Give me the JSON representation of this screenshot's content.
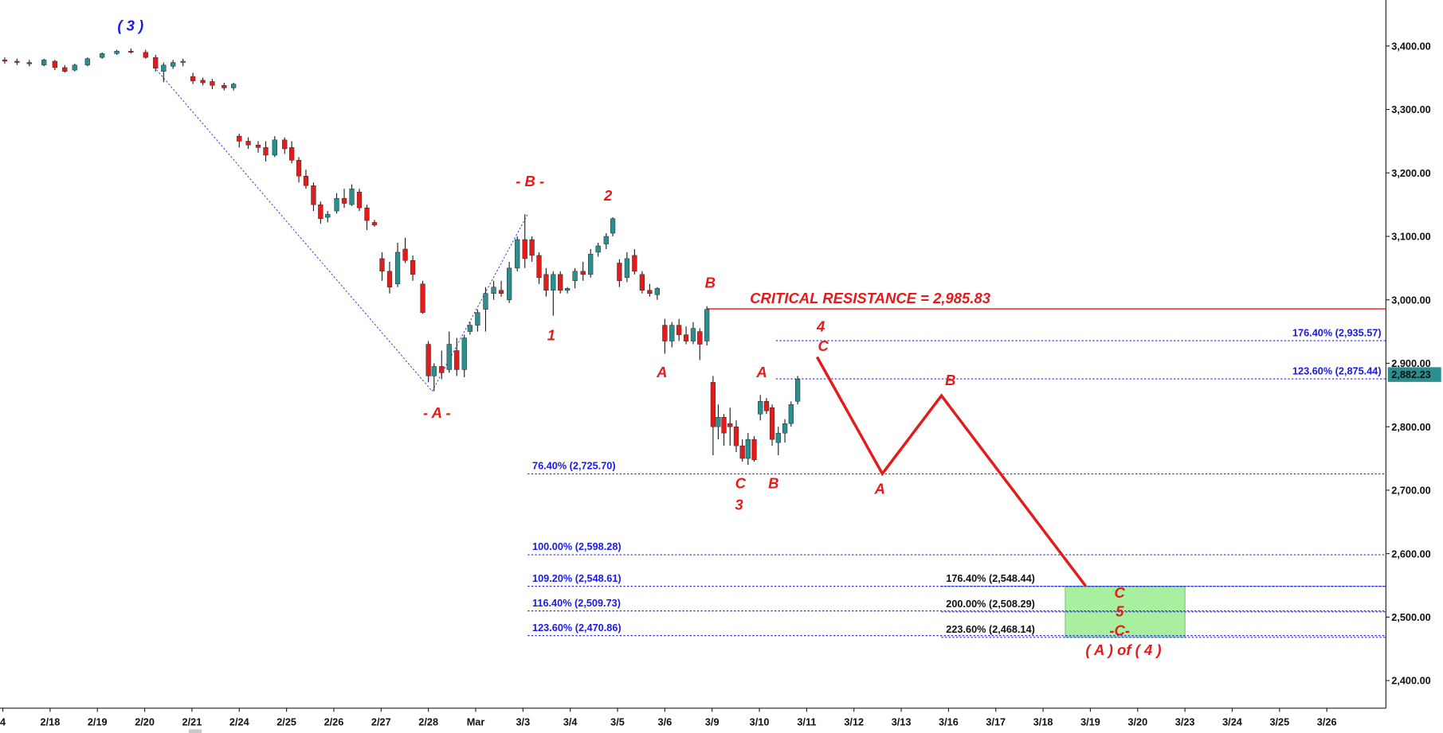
{
  "chart_data": {
    "type": "candlestick",
    "up_color": "#2a8f8f",
    "down_color": "#e41b1b",
    "xlim": [
      -0.06,
      29.25
    ],
    "ylim": [
      2356.5,
      3472.5
    ],
    "xticks": [
      {
        "value": 0,
        "label": "4"
      },
      {
        "value": 1,
        "label": "2/18"
      },
      {
        "value": 2,
        "label": "2/19"
      },
      {
        "value": 3,
        "label": "2/20"
      },
      {
        "value": 4,
        "label": "2/21"
      },
      {
        "value": 5,
        "label": "2/24"
      },
      {
        "value": 6,
        "label": "2/25"
      },
      {
        "value": 7,
        "label": "2/26"
      },
      {
        "value": 8,
        "label": "2/27"
      },
      {
        "value": 9,
        "label": "2/28"
      },
      {
        "value": 10,
        "label": "Mar"
      },
      {
        "value": 11,
        "label": "3/3"
      },
      {
        "value": 12,
        "label": "3/4"
      },
      {
        "value": 13,
        "label": "3/5"
      },
      {
        "value": 14,
        "label": "3/6"
      },
      {
        "value": 15,
        "label": "3/9"
      },
      {
        "value": 16,
        "label": "3/10"
      },
      {
        "value": 17,
        "label": "3/11"
      },
      {
        "value": 18,
        "label": "3/12"
      },
      {
        "value": 19,
        "label": "3/13"
      },
      {
        "value": 20,
        "label": "3/16"
      },
      {
        "value": 21,
        "label": "3/17"
      },
      {
        "value": 22,
        "label": "3/18"
      },
      {
        "value": 23,
        "label": "3/19"
      },
      {
        "value": 24,
        "label": "3/20"
      },
      {
        "value": 25,
        "label": "3/23"
      },
      {
        "value": 26,
        "label": "3/24"
      },
      {
        "value": 27,
        "label": "3/25"
      },
      {
        "value": 28,
        "label": "3/26"
      }
    ],
    "yticks": [
      {
        "value": 2400,
        "label": "2,400.00"
      },
      {
        "value": 2500,
        "label": "2,500.00"
      },
      {
        "value": 2600,
        "label": "2,600.00"
      },
      {
        "value": 2700,
        "label": "2,700.00"
      },
      {
        "value": 2800,
        "label": "2,800.00"
      },
      {
        "value": 2900,
        "label": "2,900.00"
      },
      {
        "value": 3000,
        "label": "3,000.00"
      },
      {
        "value": 3100,
        "label": "3,100.00"
      },
      {
        "value": 3200,
        "label": "3,200.00"
      },
      {
        "value": 3300,
        "label": "3,300.00"
      },
      {
        "value": 3400,
        "label": "3,400.00"
      }
    ],
    "candles": [
      {
        "x": 0.04,
        "open": 3378,
        "high": 3382,
        "low": 3372,
        "close": 3376
      },
      {
        "x": 0.3,
        "open": 3376,
        "high": 3380,
        "low": 3370,
        "close": 3374
      },
      {
        "x": 0.56,
        "open": 3374,
        "high": 3378,
        "low": 3368,
        "close": 3372
      },
      {
        "x": 0.87,
        "open": 3370,
        "high": 3380,
        "low": 3368,
        "close": 3378
      },
      {
        "x": 1.1,
        "open": 3376,
        "high": 3378,
        "low": 3362,
        "close": 3366
      },
      {
        "x": 1.31,
        "open": 3366,
        "high": 3370,
        "low": 3358,
        "close": 3360
      },
      {
        "x": 1.52,
        "open": 3362,
        "high": 3372,
        "low": 3360,
        "close": 3370
      },
      {
        "x": 1.79,
        "open": 3370,
        "high": 3382,
        "low": 3368,
        "close": 3380
      },
      {
        "x": 2.1,
        "open": 3382,
        "high": 3390,
        "low": 3380,
        "close": 3388
      },
      {
        "x": 2.41,
        "open": 3388,
        "high": 3394,
        "low": 3386,
        "close": 3392
      },
      {
        "x": 2.71,
        "open": 3392,
        "high": 3396,
        "low": 3388,
        "close": 3390
      },
      {
        "x": 3.02,
        "open": 3390,
        "high": 3394,
        "low": 3380,
        "close": 3382
      },
      {
        "x": 3.23,
        "open": 3382,
        "high": 3386,
        "low": 3360,
        "close": 3365
      },
      {
        "x": 3.4,
        "open": 3360,
        "high": 3374,
        "low": 3343,
        "close": 3370
      },
      {
        "x": 3.6,
        "open": 3368,
        "high": 3378,
        "low": 3364,
        "close": 3374
      },
      {
        "x": 3.81,
        "open": 3374,
        "high": 3380,
        "low": 3368,
        "close": 3376
      },
      {
        "x": 4.02,
        "open": 3352,
        "high": 3358,
        "low": 3340,
        "close": 3345
      },
      {
        "x": 4.23,
        "open": 3346,
        "high": 3350,
        "low": 3338,
        "close": 3342
      },
      {
        "x": 4.43,
        "open": 3344,
        "high": 3348,
        "low": 3332,
        "close": 3338
      },
      {
        "x": 4.68,
        "open": 3338,
        "high": 3342,
        "low": 3330,
        "close": 3334
      },
      {
        "x": 4.88,
        "open": 3334,
        "high": 3342,
        "low": 3330,
        "close": 3340
      },
      {
        "x": 5.0,
        "open": 3258,
        "high": 3262,
        "low": 3240,
        "close": 3250
      },
      {
        "x": 5.19,
        "open": 3250,
        "high": 3256,
        "low": 3238,
        "close": 3244
      },
      {
        "x": 5.4,
        "open": 3244,
        "high": 3250,
        "low": 3232,
        "close": 3240
      },
      {
        "x": 5.56,
        "open": 3240,
        "high": 3250,
        "low": 3218,
        "close": 3228
      },
      {
        "x": 5.75,
        "open": 3228,
        "high": 3258,
        "low": 3225,
        "close": 3252
      },
      {
        "x": 5.96,
        "open": 3252,
        "high": 3256,
        "low": 3230,
        "close": 3238
      },
      {
        "x": 6.11,
        "open": 3240,
        "high": 3250,
        "low": 3215,
        "close": 3220
      },
      {
        "x": 6.26,
        "open": 3220,
        "high": 3225,
        "low": 3185,
        "close": 3195
      },
      {
        "x": 6.41,
        "open": 3195,
        "high": 3205,
        "low": 3175,
        "close": 3180
      },
      {
        "x": 6.57,
        "open": 3180,
        "high": 3185,
        "low": 3140,
        "close": 3150
      },
      {
        "x": 6.72,
        "open": 3150,
        "high": 3155,
        "low": 3120,
        "close": 3128
      },
      {
        "x": 6.87,
        "open": 3130,
        "high": 3140,
        "low": 3122,
        "close": 3135
      },
      {
        "x": 7.06,
        "open": 3140,
        "high": 3168,
        "low": 3136,
        "close": 3160
      },
      {
        "x": 7.22,
        "open": 3160,
        "high": 3175,
        "low": 3145,
        "close": 3152
      },
      {
        "x": 7.38,
        "open": 3150,
        "high": 3182,
        "low": 3148,
        "close": 3175
      },
      {
        "x": 7.54,
        "open": 3170,
        "high": 3175,
        "low": 3140,
        "close": 3145
      },
      {
        "x": 7.7,
        "open": 3145,
        "high": 3150,
        "low": 3110,
        "close": 3125
      },
      {
        "x": 7.86,
        "open": 3122,
        "high": 3126,
        "low": 3115,
        "close": 3118
      },
      {
        "x": 8.02,
        "open": 3065,
        "high": 3075,
        "low": 3030,
        "close": 3045
      },
      {
        "x": 8.18,
        "open": 3045,
        "high": 3060,
        "low": 3010,
        "close": 3020
      },
      {
        "x": 8.35,
        "open": 3025,
        "high": 3090,
        "low": 3020,
        "close": 3075
      },
      {
        "x": 8.51,
        "open": 3080,
        "high": 3098,
        "low": 3058,
        "close": 3062
      },
      {
        "x": 8.67,
        "open": 3062,
        "high": 3070,
        "low": 3030,
        "close": 3040
      },
      {
        "x": 8.88,
        "open": 3025,
        "high": 3030,
        "low": 2978,
        "close": 2980
      },
      {
        "x": 9.0,
        "open": 2930,
        "high": 2935,
        "low": 2870,
        "close": 2880
      },
      {
        "x": 9.12,
        "open": 2880,
        "high": 2900,
        "low": 2856,
        "close": 2895
      },
      {
        "x": 9.28,
        "open": 2895,
        "high": 2920,
        "low": 2875,
        "close": 2885
      },
      {
        "x": 9.44,
        "open": 2890,
        "high": 2950,
        "low": 2885,
        "close": 2930
      },
      {
        "x": 9.6,
        "open": 2920,
        "high": 2940,
        "low": 2880,
        "close": 2890
      },
      {
        "x": 9.76,
        "open": 2890,
        "high": 2945,
        "low": 2878,
        "close": 2940
      },
      {
        "x": 9.88,
        "open": 2950,
        "high": 2965,
        "low": 2945,
        "close": 2960
      },
      {
        "x": 10.04,
        "open": 2960,
        "high": 2985,
        "low": 2950,
        "close": 2980
      },
      {
        "x": 10.21,
        "open": 2985,
        "high": 3020,
        "low": 2950,
        "close": 3010
      },
      {
        "x": 10.38,
        "open": 3010,
        "high": 3030,
        "low": 3000,
        "close": 3020
      },
      {
        "x": 10.54,
        "open": 3015,
        "high": 3030,
        "low": 3005,
        "close": 3010
      },
      {
        "x": 10.71,
        "open": 3000,
        "high": 3060,
        "low": 2995,
        "close": 3050
      },
      {
        "x": 10.88,
        "open": 3050,
        "high": 3100,
        "low": 3045,
        "close": 3095
      },
      {
        "x": 11.04,
        "open": 3095,
        "high": 3135,
        "low": 3050,
        "close": 3065
      },
      {
        "x": 11.19,
        "open": 3095,
        "high": 3100,
        "low": 3060,
        "close": 3070
      },
      {
        "x": 11.34,
        "open": 3070,
        "high": 3075,
        "low": 3025,
        "close": 3035
      },
      {
        "x": 11.49,
        "open": 3040,
        "high": 3050,
        "low": 3005,
        "close": 3015
      },
      {
        "x": 11.64,
        "open": 3015,
        "high": 3045,
        "low": 2975,
        "close": 3040
      },
      {
        "x": 11.79,
        "open": 3040,
        "high": 3045,
        "low": 3010,
        "close": 3015
      },
      {
        "x": 11.94,
        "open": 3015,
        "high": 3020,
        "low": 3010,
        "close": 3018
      },
      {
        "x": 12.1,
        "open": 3030,
        "high": 3050,
        "low": 3018,
        "close": 3045
      },
      {
        "x": 12.27,
        "open": 3045,
        "high": 3060,
        "low": 3030,
        "close": 3040
      },
      {
        "x": 12.43,
        "open": 3040,
        "high": 3080,
        "low": 3035,
        "close": 3072
      },
      {
        "x": 12.59,
        "open": 3075,
        "high": 3090,
        "low": 3068,
        "close": 3085
      },
      {
        "x": 12.76,
        "open": 3088,
        "high": 3105,
        "low": 3080,
        "close": 3100
      },
      {
        "x": 12.9,
        "open": 3105,
        "high": 3130,
        "low": 3100,
        "close": 3128
      },
      {
        "x": 13.04,
        "open": 3058,
        "high": 3064,
        "low": 3020,
        "close": 3030
      },
      {
        "x": 13.2,
        "open": 3035,
        "high": 3075,
        "low": 3028,
        "close": 3065
      },
      {
        "x": 13.36,
        "open": 3070,
        "high": 3080,
        "low": 3040,
        "close": 3045
      },
      {
        "x": 13.52,
        "open": 3040,
        "high": 3045,
        "low": 3010,
        "close": 3015
      },
      {
        "x": 13.68,
        "open": 3015,
        "high": 3025,
        "low": 3005,
        "close": 3010
      },
      {
        "x": 13.84,
        "open": 3008,
        "high": 3020,
        "low": 3000,
        "close": 3018
      },
      {
        "x": 14.0,
        "open": 2960,
        "high": 2970,
        "low": 2915,
        "close": 2935
      },
      {
        "x": 14.15,
        "open": 2935,
        "high": 2965,
        "low": 2925,
        "close": 2960
      },
      {
        "x": 14.3,
        "open": 2960,
        "high": 2970,
        "low": 2935,
        "close": 2945
      },
      {
        "x": 14.45,
        "open": 2945,
        "high": 2958,
        "low": 2930,
        "close": 2935
      },
      {
        "x": 14.6,
        "open": 2935,
        "high": 2965,
        "low": 2930,
        "close": 2955
      },
      {
        "x": 14.74,
        "open": 2950,
        "high": 2955,
        "low": 2905,
        "close": 2930
      },
      {
        "x": 14.89,
        "open": 2935,
        "high": 2990,
        "low": 2928,
        "close": 2985
      },
      {
        "x": 15.02,
        "open": 2870,
        "high": 2880,
        "low": 2755,
        "close": 2800
      },
      {
        "x": 15.13,
        "open": 2800,
        "high": 2835,
        "low": 2780,
        "close": 2815
      },
      {
        "x": 15.25,
        "open": 2815,
        "high": 2820,
        "low": 2770,
        "close": 2790
      },
      {
        "x": 15.38,
        "open": 2805,
        "high": 2830,
        "low": 2770,
        "close": 2800
      },
      {
        "x": 15.51,
        "open": 2800,
        "high": 2810,
        "low": 2760,
        "close": 2770
      },
      {
        "x": 15.64,
        "open": 2770,
        "high": 2780,
        "low": 2745,
        "close": 2750
      },
      {
        "x": 15.76,
        "open": 2750,
        "high": 2790,
        "low": 2740,
        "close": 2780
      },
      {
        "x": 15.89,
        "open": 2780,
        "high": 2785,
        "low": 2745,
        "close": 2748
      },
      {
        "x": 16.02,
        "open": 2820,
        "high": 2850,
        "low": 2810,
        "close": 2840
      },
      {
        "x": 16.15,
        "open": 2840,
        "high": 2845,
        "low": 2820,
        "close": 2825
      },
      {
        "x": 16.27,
        "open": 2830,
        "high": 2835,
        "low": 2770,
        "close": 2780
      },
      {
        "x": 16.4,
        "open": 2775,
        "high": 2800,
        "low": 2755,
        "close": 2790
      },
      {
        "x": 16.54,
        "open": 2790,
        "high": 2812,
        "low": 2775,
        "close": 2805
      },
      {
        "x": 16.67,
        "open": 2805,
        "high": 2840,
        "low": 2800,
        "close": 2835
      },
      {
        "x": 16.81,
        "open": 2840,
        "high": 2880,
        "low": 2835,
        "close": 2875
      }
    ],
    "last_price": {
      "value": 2882.23,
      "label": "2,882.23",
      "color": "#2a8f8f"
    },
    "resistance": {
      "value": 2985.83,
      "label": "CRITICAL RESISTANCE = 2,985.83",
      "color": "#e41b1b"
    },
    "fib_levels": [
      {
        "label": "76.40% (2,725.70)",
        "value": 2725.7,
        "label_color": "#1a1ae6"
      },
      {
        "label": "100.00% (2,598.28)",
        "value": 2598.28,
        "label_color": "#1a1ae6"
      },
      {
        "label": "109.20% (2,548.61)",
        "value": 2548.61,
        "label_color": "#1a1ae6"
      },
      {
        "label": "116.40% (2,509.73)",
        "value": 2509.73,
        "label_color": "#1a1ae6"
      },
      {
        "label": "123.60% (2,470.86)",
        "value": 2470.86,
        "label_color": "#1a1ae6"
      },
      {
        "label": "176.40% (2,935.57)",
        "value": 2935.57,
        "label_color": "#1a1ae6"
      },
      {
        "label": "123.60% (2,875.44)",
        "value": 2875.44,
        "label_color": "#1a1ae6"
      },
      {
        "label": "176.40% (2,548.44)",
        "value": 2548.44,
        "label_color": "#111111"
      },
      {
        "label": "200.00% (2,508.29)",
        "value": 2508.29,
        "label_color": "#111111"
      },
      {
        "label": "223.60% (2,468.14)",
        "value": 2468.14,
        "label_color": "#111111"
      }
    ],
    "projection": {
      "x": [
        17.22,
        18.6,
        19.85,
        22.9
      ],
      "y": [
        2910,
        2726,
        2849,
        2549
      ],
      "color": "#e41b1b"
    },
    "target_zone": {
      "x": [
        22.47,
        25.0
      ],
      "y": [
        2468.14,
        2548.44
      ],
      "color": "#a8f0a0"
    },
    "annotations": [
      {
        "text": "( 3 )",
        "color": "#1a1ae6"
      },
      {
        "text": "- B -",
        "color": "#e41b1b"
      },
      {
        "text": "2",
        "color": "#e41b1b"
      },
      {
        "text": "- A -",
        "color": "#e41b1b"
      },
      {
        "text": "1",
        "color": "#e41b1b"
      },
      {
        "text": "B",
        "color": "#e41b1b"
      },
      {
        "text": "A",
        "color": "#e41b1b"
      },
      {
        "text": "4",
        "color": "#e41b1b"
      },
      {
        "text": "C",
        "color": "#e41b1b"
      },
      {
        "text": "A",
        "color": "#e41b1b"
      },
      {
        "text": "C",
        "color": "#e41b1b"
      },
      {
        "text": "3",
        "color": "#e41b1b"
      },
      {
        "text": "B",
        "color": "#e41b1b"
      },
      {
        "text": "A",
        "color": "#e41b1b"
      },
      {
        "text": "B",
        "color": "#e41b1b"
      },
      {
        "text": "C",
        "color": "#e41b1b"
      },
      {
        "text": "5",
        "color": "#e41b1b"
      },
      {
        "text": "-C-",
        "color": "#e41b1b"
      },
      {
        "text": "( A ) of ( 4 )",
        "color": "#e41b1b"
      }
    ]
  }
}
